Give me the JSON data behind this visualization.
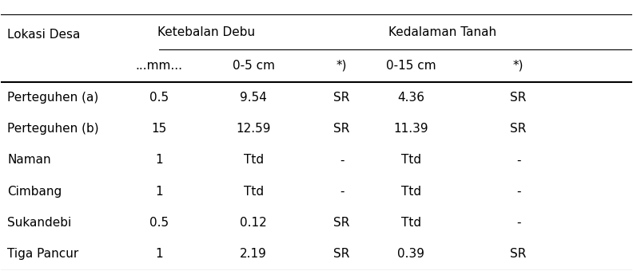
{
  "col_headers_row1": [
    "",
    "Ketebalan Debu",
    "",
    "Kedalaman Tanah",
    "",
    ""
  ],
  "col_headers_row2": [
    "Lokasi Desa",
    "...mm...",
    "0-5 cm",
    "*)",
    "0-15 cm",
    "*)"
  ],
  "rows": [
    [
      "Perteguhen (a)",
      "0.5",
      "9.54",
      "SR",
      "4.36",
      "SR"
    ],
    [
      "Perteguhen (b)",
      "15",
      "12.59",
      "SR",
      "11.39",
      "SR"
    ],
    [
      "Naman",
      "1",
      "Ttd",
      "-",
      "Ttd",
      "-"
    ],
    [
      "Cimbang",
      "1",
      "Ttd",
      "-",
      "Ttd",
      "-"
    ],
    [
      "Sukandebi",
      "0.5",
      "0.12",
      "SR",
      "Ttd",
      "-"
    ],
    [
      "Tiga Pancur",
      "1",
      "2.19",
      "SR",
      "0.39",
      "SR"
    ]
  ],
  "col_spans_row1": [
    {
      "text": "Ketebalan Debu",
      "start": 1,
      "end": 1
    },
    {
      "text": "Kedalaman Tanah",
      "start": 2,
      "end": 5
    }
  ],
  "background_color": "#ffffff",
  "text_color": "#000000",
  "font_size": 11,
  "header_font_size": 11
}
